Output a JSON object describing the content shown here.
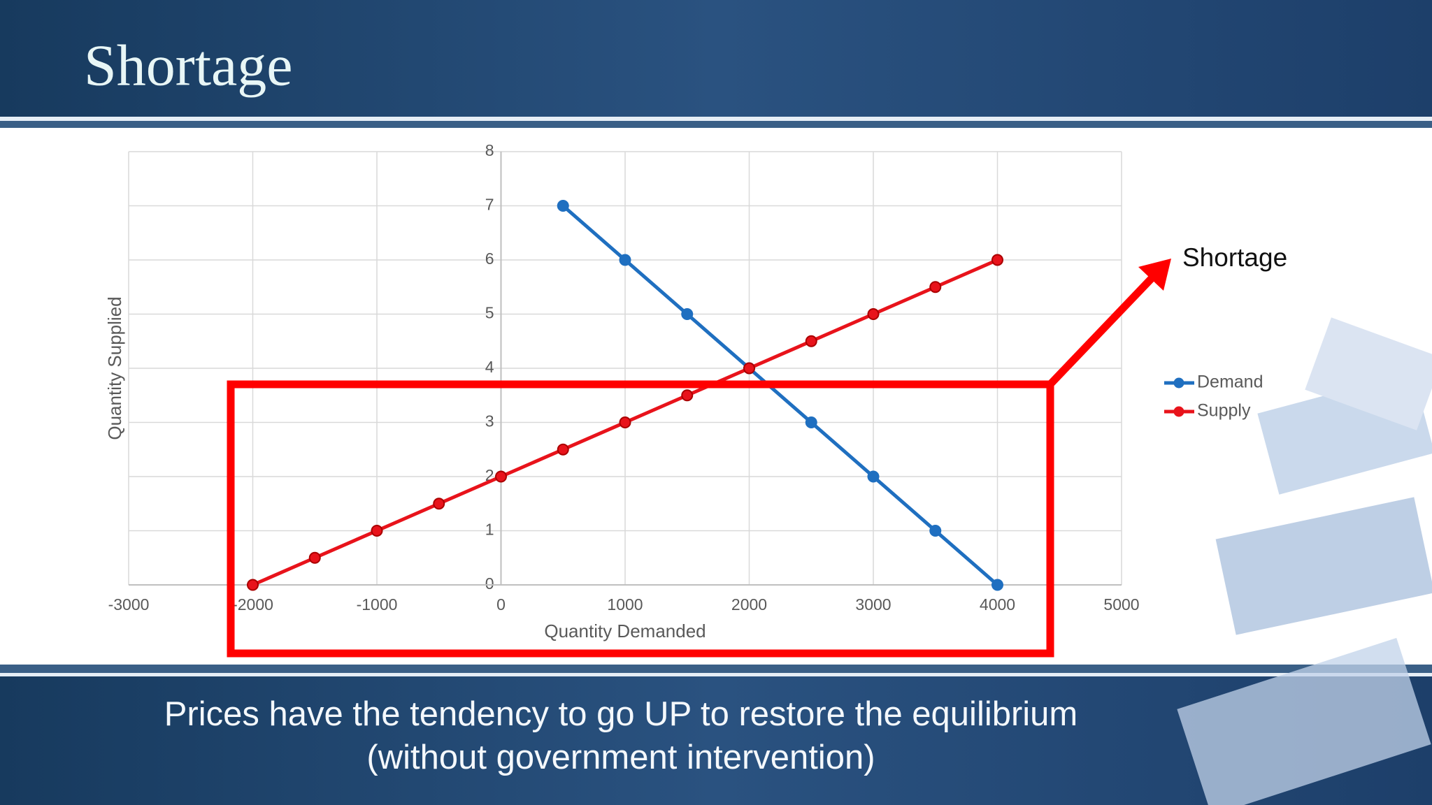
{
  "slide_title": "Shortage",
  "footer_lines": [
    "Prices have the tendency to go UP to restore the equilibrium",
    "(without government intervention)"
  ],
  "chart_data": {
    "type": "scatter",
    "x_label": "Quantity Demanded",
    "y_label": "Quantity Supplied",
    "annotation": "Shortage",
    "series": [
      {
        "name": "Demand",
        "color": "#1f6fc0",
        "x": [
          500,
          1000,
          1500,
          2000,
          2500,
          3000,
          3500,
          4000
        ],
        "values": [
          7,
          6,
          5,
          4,
          3,
          2,
          1,
          0
        ]
      },
      {
        "name": "Supply",
        "color": "#e8131b",
        "x": [
          -2000,
          -1500,
          -1000,
          -500,
          0,
          500,
          1000,
          1500,
          2000,
          2500,
          3000,
          3500,
          4000
        ],
        "values": [
          0,
          0.5,
          1,
          1.5,
          2,
          2.5,
          3,
          3.5,
          4,
          4.5,
          5,
          5.5,
          6
        ]
      }
    ],
    "xlim": [
      -3000,
      5000
    ],
    "xticks": [
      -3000,
      -2000,
      -1000,
      0,
      1000,
      2000,
      3000,
      4000,
      5000
    ],
    "ylim": [
      0,
      8
    ],
    "yticks": [
      0,
      1,
      2,
      3,
      4,
      5,
      6,
      7,
      8
    ],
    "grid": true,
    "legend": "right"
  }
}
